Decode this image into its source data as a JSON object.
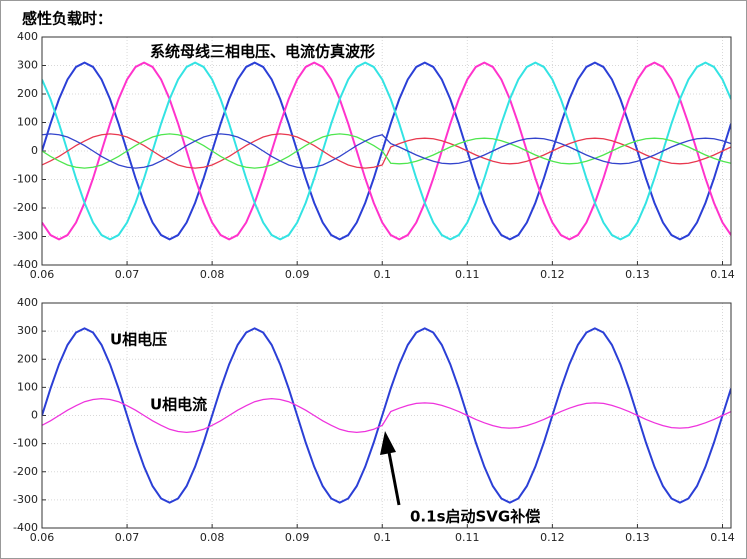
{
  "heading": "感性负载时：",
  "chart_data": [
    {
      "type": "line",
      "title": "系统母线三相电压、电流仿真波形",
      "x": [
        0.06,
        0.061,
        0.062,
        0.063,
        0.064,
        0.065,
        0.066,
        0.067,
        0.068,
        0.069,
        0.07,
        0.071,
        0.072,
        0.073,
        0.074,
        0.075,
        0.076,
        0.077,
        0.078,
        0.079,
        0.08,
        0.081,
        0.082,
        0.083,
        0.084,
        0.085,
        0.086,
        0.087,
        0.088,
        0.089,
        0.09,
        0.091,
        0.092,
        0.093,
        0.094,
        0.095,
        0.096,
        0.097,
        0.098,
        0.099,
        0.1,
        0.101,
        0.102,
        0.103,
        0.104,
        0.105,
        0.106,
        0.107,
        0.108,
        0.109,
        0.11,
        0.111,
        0.112,
        0.113,
        0.114,
        0.115,
        0.116,
        0.117,
        0.118,
        0.119,
        0.12,
        0.121,
        0.122,
        0.123,
        0.124,
        0.125,
        0.126,
        0.127,
        0.128,
        0.129,
        0.13,
        0.131,
        0.132,
        0.133,
        0.134,
        0.135,
        0.136,
        0.137,
        0.138,
        0.139,
        0.14,
        0.141
      ],
      "series": [
        {
          "color": "#2b3fd6",
          "values": [
            0,
            96,
            182,
            251,
            295,
            310,
            295,
            251,
            182,
            96,
            0,
            -96,
            -182,
            -251,
            -295,
            -310,
            -295,
            -251,
            -182,
            -96,
            0,
            96,
            182,
            251,
            295,
            310,
            295,
            251,
            182,
            96,
            0,
            -96,
            -182,
            -251,
            -295,
            -310,
            -295,
            -251,
            -182,
            -96,
            0,
            96,
            182,
            251,
            295,
            310,
            295,
            251,
            182,
            96,
            0,
            -96,
            -182,
            -251,
            -295,
            -310,
            -295,
            -251,
            -182,
            -96,
            0,
            96,
            182,
            251,
            295,
            310,
            295,
            251,
            182,
            96,
            0,
            -96,
            -182,
            -251,
            -295,
            -310,
            -295,
            -251,
            -182,
            -96,
            0,
            96
          ]
        },
        {
          "color": "#ff33cc",
          "values": [
            -251,
            -295,
            -310,
            -295,
            -251,
            -182,
            -96,
            0,
            96,
            182,
            251,
            295,
            310,
            295,
            251,
            182,
            96,
            0,
            -96,
            -182,
            -251,
            -295,
            -310,
            -295,
            -251,
            -182,
            -96,
            0,
            96,
            182,
            251,
            295,
            310,
            295,
            251,
            182,
            96,
            0,
            -96,
            -182,
            -251,
            -295,
            -310,
            -295,
            -251,
            -182,
            -96,
            0,
            96,
            182,
            251,
            295,
            310,
            295,
            251,
            182,
            96,
            0,
            -96,
            -182,
            -251,
            -295,
            -310,
            -295,
            -251,
            -182,
            -96,
            0,
            96,
            182,
            251,
            295,
            310,
            295,
            251,
            182,
            96,
            0,
            -96,
            -182,
            -251,
            -295
          ]
        },
        {
          "color": "#33e3e3",
          "values": [
            251,
            182,
            96,
            0,
            -96,
            -182,
            -251,
            -295,
            -310,
            -295,
            -251,
            -182,
            -96,
            0,
            96,
            182,
            251,
            295,
            310,
            295,
            251,
            182,
            96,
            0,
            -96,
            -182,
            -251,
            -295,
            -310,
            -295,
            -251,
            -182,
            -96,
            0,
            96,
            182,
            251,
            295,
            310,
            295,
            251,
            182,
            96,
            0,
            -96,
            -182,
            -251,
            -295,
            -310,
            -295,
            -251,
            -182,
            -96,
            0,
            96,
            182,
            251,
            295,
            310,
            295,
            251,
            182,
            96,
            0,
            -96,
            -182,
            -251,
            -295,
            -310,
            -295,
            -251,
            -182,
            -96,
            0,
            96,
            182,
            251,
            295,
            310,
            295,
            251,
            182
          ]
        },
        {
          "color": "#e8384f",
          "values": [
            -49,
            -35,
            -19,
            0,
            19,
            35,
            49,
            57,
            60,
            57,
            49,
            35,
            19,
            0,
            -19,
            -35,
            -49,
            -57,
            -60,
            -57,
            -49,
            -35,
            -19,
            0,
            19,
            35,
            49,
            57,
            60,
            57,
            49,
            35,
            19,
            0,
            -19,
            -35,
            -49,
            -57,
            -60,
            -57,
            -49,
            14,
            26,
            36,
            43,
            45,
            43,
            36,
            26,
            14,
            0,
            -14,
            -26,
            -36,
            -43,
            -45,
            -43,
            -36,
            -26,
            -14,
            0,
            14,
            26,
            36,
            43,
            45,
            43,
            36,
            26,
            14,
            0,
            -14,
            -26,
            -36,
            -43,
            -45,
            -43,
            -36,
            -26,
            -14,
            0,
            14
          ]
        },
        {
          "color": "#4ee64e",
          "values": [
            0,
            -19,
            -35,
            -49,
            -57,
            -60,
            -57,
            -49,
            -35,
            -19,
            0,
            19,
            35,
            49,
            57,
            60,
            57,
            49,
            35,
            19,
            0,
            -19,
            -35,
            -49,
            -57,
            -60,
            -57,
            -49,
            -35,
            -19,
            0,
            19,
            35,
            49,
            57,
            60,
            57,
            49,
            35,
            19,
            0,
            -43,
            -45,
            -43,
            -36,
            -26,
            -14,
            0,
            14,
            26,
            36,
            43,
            45,
            43,
            36,
            26,
            14,
            0,
            -14,
            -26,
            -36,
            -43,
            -45,
            -43,
            -36,
            -26,
            -14,
            0,
            14,
            26,
            36,
            43,
            45,
            43,
            36,
            26,
            14,
            0,
            -14,
            -26,
            -36,
            -43
          ]
        },
        {
          "color": "#3344cc",
          "values": [
            57,
            60,
            57,
            49,
            35,
            19,
            0,
            -19,
            -35,
            -49,
            -57,
            -60,
            -57,
            -49,
            -35,
            -19,
            0,
            19,
            35,
            49,
            57,
            60,
            57,
            49,
            35,
            19,
            0,
            -19,
            -35,
            -49,
            -57,
            -60,
            -57,
            -49,
            -35,
            -19,
            0,
            19,
            35,
            49,
            57,
            26,
            14,
            0,
            -14,
            -26,
            -36,
            -43,
            -45,
            -43,
            -36,
            -26,
            -14,
            0,
            14,
            26,
            36,
            43,
            45,
            43,
            36,
            26,
            14,
            0,
            -14,
            -26,
            -36,
            -43,
            -45,
            -43,
            -36,
            -26,
            -14,
            0,
            14,
            26,
            36,
            43,
            45,
            43,
            36,
            26
          ]
        }
      ],
      "xlim": [
        0.06,
        0.141
      ],
      "xticks": [
        0.06,
        0.07,
        0.08,
        0.09,
        0.1,
        0.11,
        0.12,
        0.13,
        0.14
      ],
      "ylim": [
        -400,
        400
      ],
      "yticks": [
        -400,
        -300,
        -200,
        -100,
        0,
        100,
        200,
        300,
        400
      ],
      "grid": true
    },
    {
      "type": "line",
      "annotation": "0.1s启动SVG补偿",
      "x": [
        0.06,
        0.061,
        0.062,
        0.063,
        0.064,
        0.065,
        0.066,
        0.067,
        0.068,
        0.069,
        0.07,
        0.071,
        0.072,
        0.073,
        0.074,
        0.075,
        0.076,
        0.077,
        0.078,
        0.079,
        0.08,
        0.081,
        0.082,
        0.083,
        0.084,
        0.085,
        0.086,
        0.087,
        0.088,
        0.089,
        0.09,
        0.091,
        0.092,
        0.093,
        0.094,
        0.095,
        0.096,
        0.097,
        0.098,
        0.099,
        0.1,
        0.101,
        0.102,
        0.103,
        0.104,
        0.105,
        0.106,
        0.107,
        0.108,
        0.109,
        0.11,
        0.111,
        0.112,
        0.113,
        0.114,
        0.115,
        0.116,
        0.117,
        0.118,
        0.119,
        0.12,
        0.121,
        0.122,
        0.123,
        0.124,
        0.125,
        0.126,
        0.127,
        0.128,
        0.129,
        0.13,
        0.131,
        0.132,
        0.133,
        0.134,
        0.135,
        0.136,
        0.137,
        0.138,
        0.139,
        0.14,
        0.141
      ],
      "series": [
        {
          "name": "U相电压",
          "color": "#2b3fd6",
          "values": [
            0,
            96,
            182,
            251,
            295,
            310,
            295,
            251,
            182,
            96,
            0,
            -96,
            -182,
            -251,
            -295,
            -310,
            -295,
            -251,
            -182,
            -96,
            0,
            96,
            182,
            251,
            295,
            310,
            295,
            251,
            182,
            96,
            0,
            -96,
            -182,
            -251,
            -295,
            -310,
            -295,
            -251,
            -182,
            -96,
            0,
            96,
            182,
            251,
            295,
            310,
            295,
            251,
            182,
            96,
            0,
            -96,
            -182,
            -251,
            -295,
            -310,
            -295,
            -251,
            -182,
            -96,
            0,
            96,
            182,
            251,
            295,
            310,
            295,
            251,
            182,
            96,
            0,
            -96,
            -182,
            -251,
            -295,
            -310,
            -295,
            -251,
            -182,
            -96,
            0,
            96
          ]
        },
        {
          "name": "U相电流",
          "color": "#ee33dd",
          "values": [
            -35,
            -19,
            0,
            19,
            35,
            49,
            57,
            60,
            57,
            49,
            35,
            19,
            0,
            -19,
            -35,
            -49,
            -57,
            -60,
            -57,
            -49,
            -35,
            -19,
            0,
            19,
            35,
            49,
            57,
            60,
            57,
            49,
            35,
            19,
            0,
            -19,
            -35,
            -49,
            -57,
            -60,
            -57,
            -49,
            -35,
            14,
            26,
            36,
            43,
            45,
            43,
            36,
            26,
            14,
            0,
            -14,
            -26,
            -36,
            -43,
            -45,
            -43,
            -36,
            -26,
            -14,
            0,
            14,
            26,
            36,
            43,
            45,
            43,
            36,
            26,
            14,
            0,
            -14,
            -26,
            -36,
            -43,
            -45,
            -43,
            -36,
            -26,
            -14,
            0,
            14
          ]
        }
      ],
      "xlim": [
        0.06,
        0.141
      ],
      "xticks": [
        0.06,
        0.07,
        0.08,
        0.09,
        0.1,
        0.11,
        0.12,
        0.13,
        0.14
      ],
      "ylim": [
        -400,
        400
      ],
      "yticks": [
        -400,
        -300,
        -200,
        -100,
        0,
        100,
        200,
        300,
        400
      ],
      "grid": true
    }
  ]
}
